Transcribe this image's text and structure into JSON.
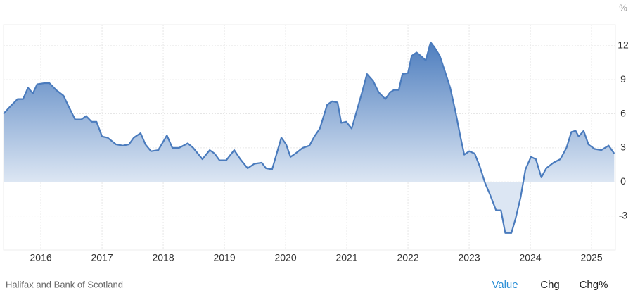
{
  "chart_data": {
    "type": "area",
    "y_unit_label": "%",
    "color": "#4a7bbd",
    "x": [
      2015.39,
      2015.51,
      2015.62,
      2015.71,
      2015.79,
      2015.87,
      2015.94,
      2016.06,
      2016.14,
      2016.25,
      2016.37,
      2016.45,
      2016.56,
      2016.66,
      2016.74,
      2016.83,
      2016.91,
      2017.0,
      2017.09,
      2017.23,
      2017.34,
      2017.44,
      2017.52,
      2017.63,
      2017.71,
      2017.8,
      2017.92,
      2018.06,
      2018.15,
      2018.26,
      2018.4,
      2018.49,
      2018.64,
      2018.76,
      2018.84,
      2018.92,
      2019.03,
      2019.16,
      2019.26,
      2019.38,
      2019.49,
      2019.61,
      2019.68,
      2019.78,
      2019.93,
      2020.01,
      2020.08,
      2020.16,
      2020.28,
      2020.39,
      2020.47,
      2020.56,
      2020.68,
      2020.76,
      2020.85,
      2020.91,
      2020.99,
      2021.08,
      2021.17,
      2021.25,
      2021.33,
      2021.43,
      2021.52,
      2021.63,
      2021.71,
      2021.77,
      2021.85,
      2021.91,
      2022.0,
      2022.06,
      2022.14,
      2022.21,
      2022.29,
      2022.37,
      2022.44,
      2022.52,
      2022.6,
      2022.69,
      2022.78,
      2022.86,
      2022.92,
      2023.0,
      2023.09,
      2023.17,
      2023.26,
      2023.34,
      2023.44,
      2023.52,
      2023.59,
      2023.69,
      2023.76,
      2023.84,
      2023.92,
      2024.01,
      2024.09,
      2024.18,
      2024.26,
      2024.38,
      2024.49,
      2024.59,
      2024.67,
      2024.74,
      2024.79,
      2024.87,
      2024.95,
      2025.05,
      2025.16,
      2025.28,
      2025.37
    ],
    "values": [
      6.0,
      6.7,
      7.3,
      7.3,
      8.3,
      7.8,
      8.6,
      8.7,
      8.7,
      8.1,
      7.6,
      6.7,
      5.5,
      5.5,
      5.8,
      5.3,
      5.3,
      4.0,
      3.9,
      3.3,
      3.2,
      3.3,
      3.9,
      4.3,
      3.3,
      2.7,
      2.8,
      4.1,
      3.0,
      3.0,
      3.4,
      3.0,
      2.0,
      2.8,
      2.5,
      1.9,
      1.9,
      2.8,
      2.0,
      1.2,
      1.6,
      1.7,
      1.2,
      1.1,
      3.9,
      3.3,
      2.2,
      2.5,
      3.0,
      3.2,
      4.0,
      4.7,
      6.8,
      7.1,
      7.0,
      5.2,
      5.3,
      4.7,
      6.4,
      7.9,
      9.5,
      8.9,
      7.9,
      7.3,
      7.9,
      8.1,
      8.1,
      9.5,
      9.6,
      11.1,
      11.4,
      11.1,
      10.7,
      12.3,
      11.8,
      11.1,
      9.8,
      8.3,
      6.1,
      3.9,
      2.4,
      2.7,
      2.5,
      1.4,
      -0.1,
      -1.1,
      -2.5,
      -2.5,
      -4.5,
      -4.5,
      -3.2,
      -1.4,
      1.1,
      2.2,
      2.0,
      0.4,
      1.2,
      1.7,
      2.0,
      3.0,
      4.4,
      4.5,
      4.0,
      4.5,
      3.3,
      2.9,
      2.8,
      3.2,
      2.5
    ],
    "xlim": [
      2015.39,
      2025.39
    ],
    "xticks": [
      2016,
      2017,
      2018,
      2019,
      2020,
      2021,
      2022,
      2023,
      2024,
      2025
    ],
    "ylim": [
      -6,
      13.85
    ],
    "yticks": [
      12,
      9,
      6,
      3,
      0,
      -3
    ],
    "grid": true
  },
  "footer": {
    "source": "Halifax and Bank of Scotland",
    "tabs": [
      "Value",
      "Chg",
      "Chg%"
    ]
  }
}
